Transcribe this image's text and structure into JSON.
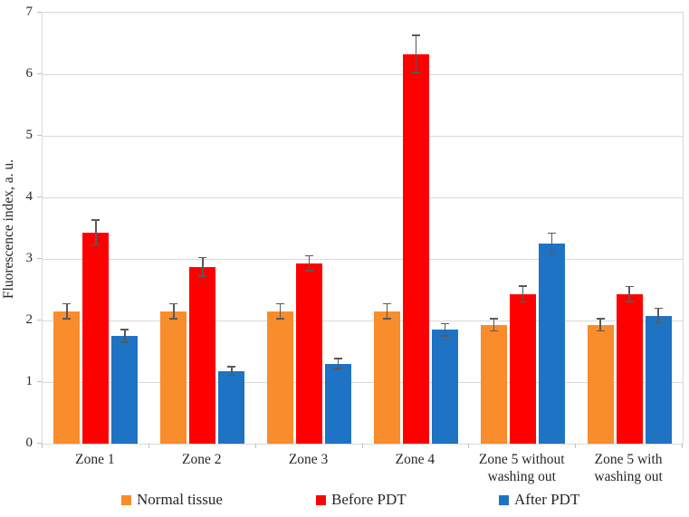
{
  "chart_data": {
    "type": "bar",
    "title": "",
    "xlabel": "",
    "ylabel": "Fluorescence index, a. u.",
    "ylim": [
      0,
      7
    ],
    "yticks": [
      0,
      1,
      2,
      3,
      4,
      5,
      6,
      7
    ],
    "grid": true,
    "legend_position": "bottom",
    "categories": [
      "Zone 1",
      "Zone 2",
      "Zone 3",
      "Zone 4",
      "Zone 5 without washing out",
      "Zone 5 with washing out"
    ],
    "series": [
      {
        "name": "Normal tissue",
        "color": "#F98C2B",
        "values": [
          2.15,
          2.15,
          2.15,
          2.15,
          1.93,
          1.93
        ],
        "errors": [
          0.12,
          0.12,
          0.12,
          0.12,
          0.1,
          0.1
        ]
      },
      {
        "name": "Before PDT",
        "color": "#FE0000",
        "values": [
          3.43,
          2.87,
          2.93,
          6.33,
          2.43,
          2.43
        ],
        "errors": [
          0.2,
          0.15,
          0.12,
          0.3,
          0.13,
          0.12
        ]
      },
      {
        "name": "After PDT",
        "color": "#1E73C4",
        "values": [
          1.75,
          1.18,
          1.3,
          1.85,
          3.25,
          2.08
        ],
        "errors": [
          0.1,
          0.07,
          0.08,
          0.1,
          0.17,
          0.12
        ]
      }
    ],
    "error_bar_color": "#595959",
    "gridline_color": "#d9d9d9",
    "axis_color": "#bfbfbf",
    "text_color": "#262626"
  }
}
